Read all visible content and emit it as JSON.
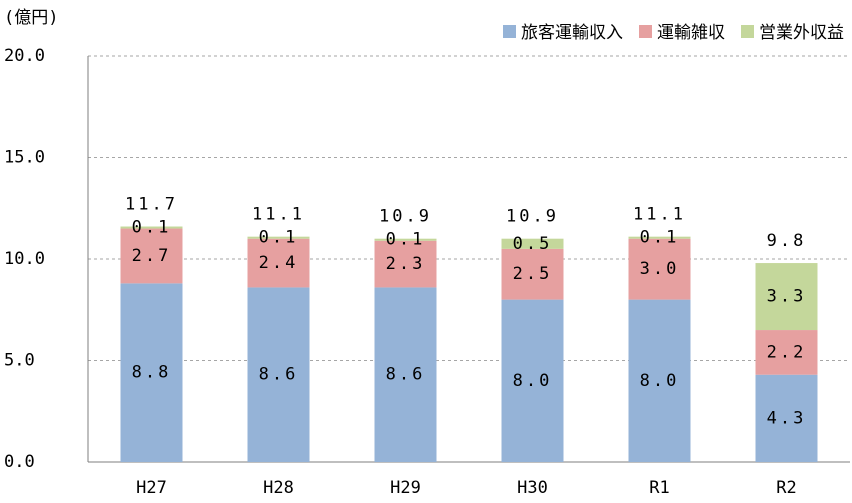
{
  "chart_data": {
    "type": "stacked-bar",
    "y_label": "(億円)",
    "categories": [
      "H27",
      "H28",
      "H29",
      "H30",
      "R1",
      "R2"
    ],
    "series": [
      {
        "name": "旅客運輸収入",
        "color": "#95b3d7",
        "values": [
          8.8,
          8.6,
          8.6,
          8.0,
          8.0,
          4.3
        ],
        "value_labels": [
          "8.8",
          "8.6",
          "8.6",
          "8.0",
          "8.0",
          "4.3"
        ]
      },
      {
        "name": "運輸雑収",
        "color": "#e6a0a0",
        "values": [
          2.7,
          2.4,
          2.3,
          2.5,
          3.0,
          2.2
        ],
        "value_labels": [
          "2.7",
          "2.4",
          "2.3",
          "2.5",
          "3.0",
          "2.2"
        ]
      },
      {
        "name": "営業外収益",
        "color": "#c4d79b",
        "values": [
          0.1,
          0.1,
          0.1,
          0.5,
          0.1,
          3.3
        ],
        "value_labels": [
          "0.1",
          "0.1",
          "0.1",
          "0.5",
          "0.1",
          "3.3"
        ]
      }
    ],
    "totals": [
      11.7,
      11.1,
      10.9,
      10.9,
      11.1,
      9.8
    ],
    "ylim": [
      0,
      20
    ],
    "yticks": [
      {
        "value": 0,
        "label": "0.0"
      },
      {
        "value": 5,
        "label": "5.0"
      },
      {
        "value": 10,
        "label": "10.0"
      },
      {
        "value": 15,
        "label": "15.0"
      },
      {
        "value": 20,
        "label": "20.0"
      }
    ],
    "grid": true,
    "legend": "top-right"
  }
}
